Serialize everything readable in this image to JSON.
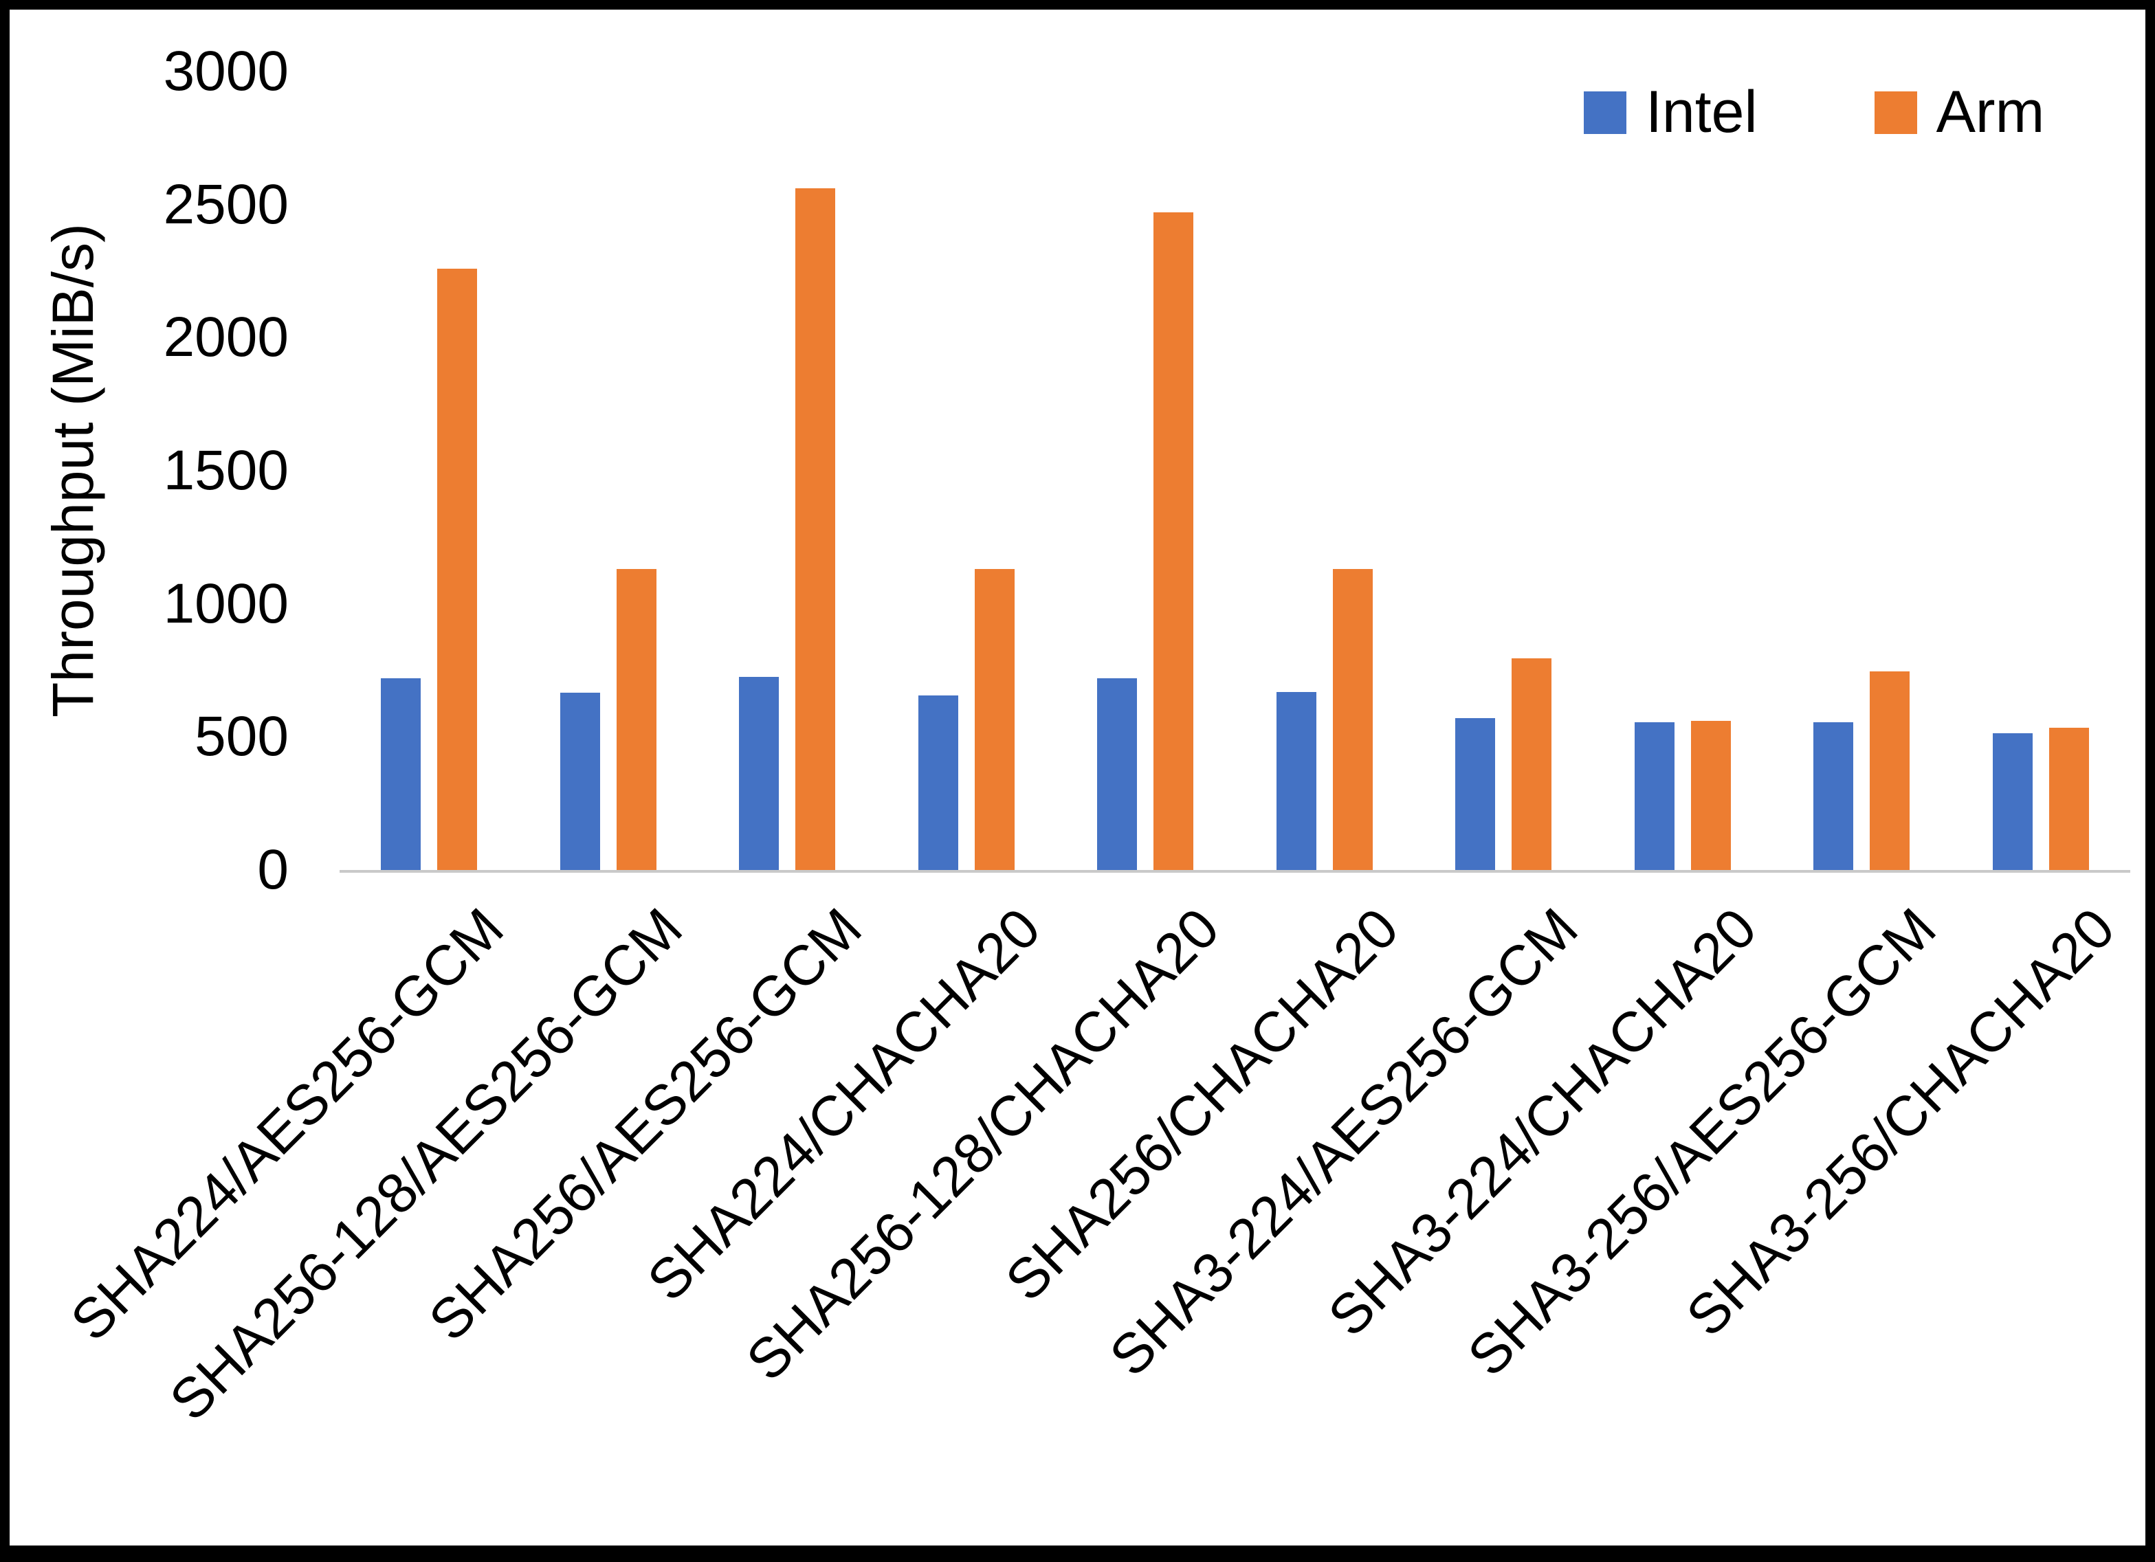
{
  "chart_data": {
    "type": "bar",
    "title": "",
    "xlabel": "",
    "ylabel": "Throughput (MiB/s)",
    "ylim": [
      0,
      3000
    ],
    "yticks": [
      0,
      500,
      1000,
      1500,
      2000,
      2500,
      3000
    ],
    "grid": false,
    "legend_position": "top-right",
    "categories": [
      "SHA224/AES256-GCM",
      "SHA256-128/AES256-GCM",
      "SHA256/AES256-GCM",
      "SHA224/CHACHA20",
      "SHA256-128/CHACHA20",
      "SHA256/CHACHA20",
      "SHA3-224/AES256-GCM",
      "SHA3-224/CHACHA20",
      "SHA3-256/AES256-GCM",
      "SHA3-256/CHACHA20"
    ],
    "series": [
      {
        "name": "Intel",
        "color": "#4472C4",
        "values": [
          720,
          665,
          725,
          655,
          720,
          670,
          570,
          555,
          555,
          515
        ]
      },
      {
        "name": "Arm",
        "color": "#ED7D31",
        "values": [
          2260,
          1130,
          2560,
          1130,
          2470,
          1130,
          795,
          560,
          745,
          535
        ]
      }
    ]
  },
  "colors": {
    "axis_line": "#c9c9c9",
    "text": "#000000",
    "border": "#000000"
  }
}
